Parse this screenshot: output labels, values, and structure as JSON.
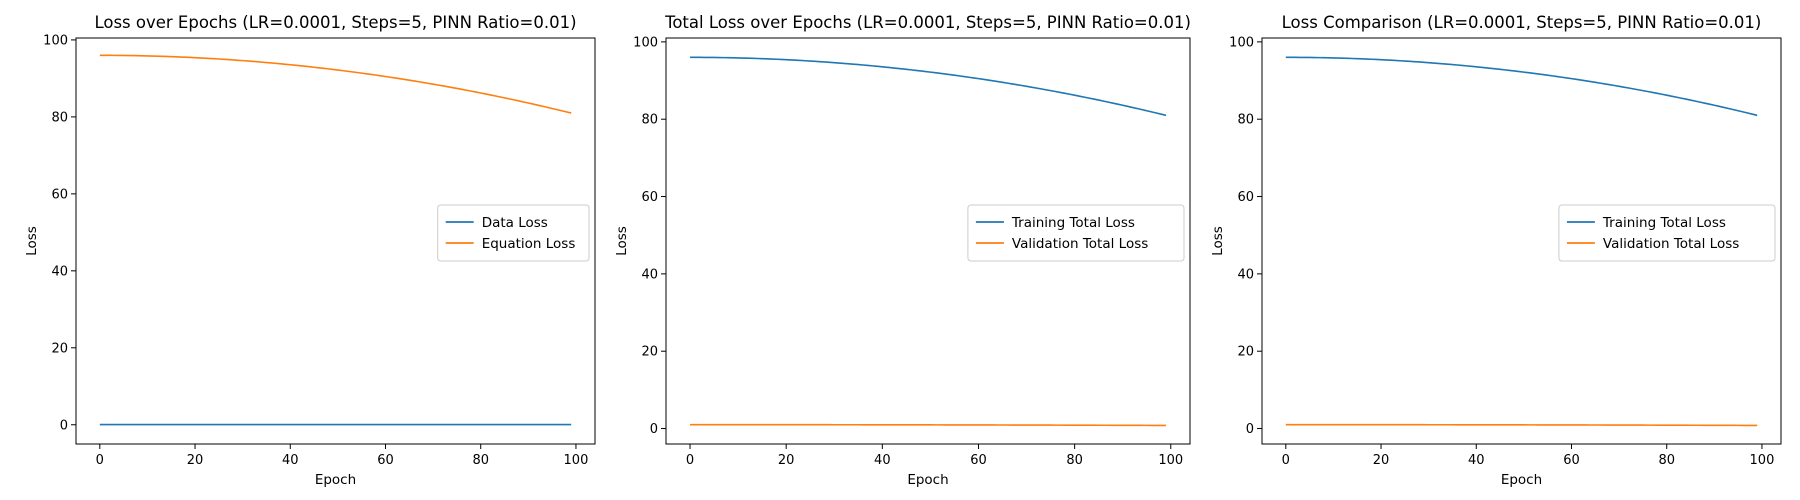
{
  "chart_data": [
    {
      "type": "line",
      "title": "Loss over Epochs (LR=0.0001, Steps=5, PINN Ratio=0.01)",
      "xlabel": "Epoch",
      "ylabel": "Loss",
      "xlim": [
        -5,
        104
      ],
      "ylim": [
        -5,
        100.5
      ],
      "xticks": [
        0,
        20,
        40,
        60,
        80,
        100
      ],
      "yticks": [
        0,
        20,
        40,
        60,
        80,
        100
      ],
      "grid": false,
      "legend_position": "center-right",
      "series": [
        {
          "name": "Data Loss",
          "color": "#1f77b4",
          "x_start": 0,
          "x_end": 99,
          "y_start": 0.05,
          "y_end": 0.05
        },
        {
          "name": "Equation Loss",
          "color": "#ff7f0e",
          "x_start": 0,
          "x_end": 99,
          "y_start": 96.0,
          "y_end": 81.0
        }
      ]
    },
    {
      "type": "line",
      "title": "Total Loss over Epochs (LR=0.0001, Steps=5, PINN Ratio=0.01)",
      "xlabel": "Epoch",
      "ylabel": "Loss",
      "xlim": [
        -5,
        104
      ],
      "ylim": [
        -4,
        101
      ],
      "xticks": [
        0,
        20,
        40,
        60,
        80,
        100
      ],
      "yticks": [
        0,
        20,
        40,
        60,
        80,
        100
      ],
      "grid": false,
      "legend_position": "center-right",
      "series": [
        {
          "name": "Training Total Loss",
          "color": "#1f77b4",
          "x_start": 0,
          "x_end": 99,
          "y_start": 96.0,
          "y_end": 81.0
        },
        {
          "name": "Validation Total Loss",
          "color": "#ff7f0e",
          "x_start": 0,
          "x_end": 99,
          "y_start": 1.0,
          "y_end": 0.8
        }
      ]
    },
    {
      "type": "line",
      "title": "Loss Comparison (LR=0.0001, Steps=5, PINN Ratio=0.01)",
      "xlabel": "Epoch",
      "ylabel": "Loss",
      "xlim": [
        -5,
        104
      ],
      "ylim": [
        -4,
        101
      ],
      "xticks": [
        0,
        20,
        40,
        60,
        80,
        100
      ],
      "yticks": [
        0,
        20,
        40,
        60,
        80,
        100
      ],
      "grid": false,
      "legend_position": "center-right",
      "series": [
        {
          "name": "Training Total Loss",
          "color": "#1f77b4",
          "x_start": 0,
          "x_end": 99,
          "y_start": 96.0,
          "y_end": 81.0
        },
        {
          "name": "Validation Total Loss",
          "color": "#ff7f0e",
          "x_start": 0,
          "x_end": 99,
          "y_start": 1.0,
          "y_end": 0.8
        }
      ]
    }
  ]
}
